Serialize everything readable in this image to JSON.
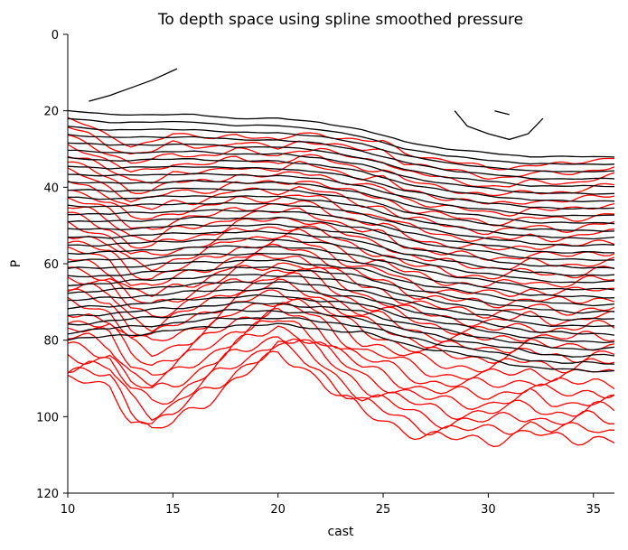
{
  "chart_data": {
    "type": "contour",
    "title": "To depth space using spline smoothed pressure",
    "xlabel": "cast",
    "ylabel": "P",
    "xlim": [
      10,
      36
    ],
    "ylim": [
      120,
      0
    ],
    "y_inverted": true,
    "xticks": [
      10,
      15,
      20,
      25,
      30,
      35
    ],
    "yticks": [
      0,
      20,
      40,
      60,
      80,
      100,
      120
    ],
    "grid": false,
    "legend": "none",
    "colors": {
      "red_contours": "#ff0000",
      "black_contours": "#000000",
      "axes": "#000000"
    },
    "red_contours": {
      "color": "#ff0000",
      "levels_top": 17,
      "levels_bottom": 88,
      "count": 31,
      "profile": {
        "x": [
          10,
          11,
          12,
          13,
          14,
          15,
          16,
          17,
          18,
          19,
          20,
          21,
          22,
          23,
          24,
          25,
          26,
          27,
          28,
          29,
          30,
          31,
          32,
          33,
          34,
          35,
          36
        ],
        "top": [
          22,
          24,
          27,
          29,
          28,
          26,
          27,
          27,
          26,
          27,
          28,
          26,
          26,
          27,
          28,
          28,
          31,
          32,
          33,
          34,
          35,
          35,
          34,
          34,
          34,
          33,
          32
        ],
        "bottom": [
          91,
          91,
          92,
          100,
          104,
          102,
          98,
          94,
          90,
          87,
          84,
          86,
          90,
          95,
          99,
          101,
          103,
          105,
          106,
          106,
          106,
          105,
          104,
          106,
          106,
          105,
          106
        ]
      }
    },
    "black_contours": {
      "color": "#000000",
      "levels_top": 20,
      "levels_bottom": 79,
      "count": 30,
      "profile": {
        "x": [
          10,
          12,
          14,
          16,
          18,
          20,
          22,
          24,
          26,
          28,
          30,
          32,
          34,
          36
        ],
        "top": [
          20,
          21,
          21,
          21,
          22,
          22,
          23,
          25,
          28,
          30,
          31,
          32,
          32,
          32
        ],
        "bottom": [
          80,
          79,
          78,
          77,
          76,
          76,
          77,
          78,
          81,
          83,
          85,
          87,
          88,
          88
        ]
      }
    },
    "black_top_fragments": [
      {
        "x": [
          11,
          12,
          13,
          14,
          15.2
        ],
        "y": [
          17.5,
          16,
          14,
          12,
          9
        ]
      },
      {
        "x": [
          28.4,
          29,
          30,
          31,
          31.9,
          32.6
        ],
        "y": [
          20,
          24,
          26,
          27.5,
          26,
          22
        ]
      },
      {
        "x": [
          30.3,
          31.0
        ],
        "y": [
          20,
          21
        ]
      }
    ]
  }
}
